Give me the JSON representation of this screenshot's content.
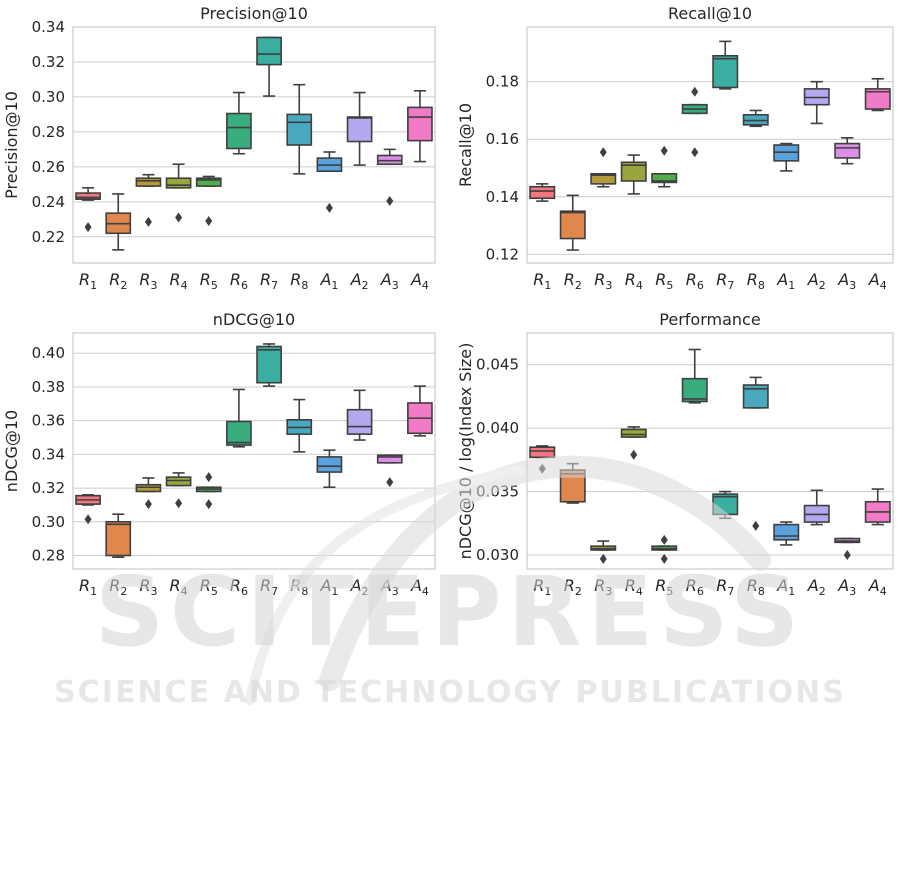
{
  "watermark": {
    "main": "SCITEPRESS",
    "sub": "SCIENCE AND TECHNOLOGY PUBLICATIONS"
  },
  "chart_data": [
    {
      "type": "box",
      "title": "Precision@10",
      "xlabel": "",
      "ylabel": "Precision@10",
      "ylim": [
        0.205,
        0.34
      ],
      "yticks": [
        0.22,
        0.24,
        0.26,
        0.28,
        0.3,
        0.32,
        0.34
      ],
      "ytick_labels": [
        "0.22",
        "0.24",
        "0.26",
        "0.28",
        "0.30",
        "0.32",
        "0.34"
      ],
      "grid": true,
      "boxes": [
        {
          "label": [
            "R",
            "1"
          ],
          "color": "#f4777f",
          "whislo": 0.241,
          "q1": 0.2415,
          "med": 0.2425,
          "q3": 0.245,
          "whishi": 0.248,
          "fliers": [
            0.2255
          ]
        },
        {
          "label": [
            "R",
            "2"
          ],
          "color": "#e0874e",
          "whislo": 0.2125,
          "q1": 0.222,
          "med": 0.2275,
          "q3": 0.2335,
          "whishi": 0.2445,
          "fliers": []
        },
        {
          "label": [
            "R",
            "3"
          ],
          "color": "#b29a3a",
          "whislo": 0.249,
          "q1": 0.249,
          "med": 0.252,
          "q3": 0.2535,
          "whishi": 0.2555,
          "fliers": [
            0.2285
          ]
        },
        {
          "label": [
            "R",
            "4"
          ],
          "color": "#9aa53d",
          "whislo": 0.248,
          "q1": 0.248,
          "med": 0.2495,
          "q3": 0.2535,
          "whishi": 0.2615,
          "fliers": [
            0.231
          ]
        },
        {
          "label": [
            "R",
            "5"
          ],
          "color": "#4fae4a",
          "whislo": 0.249,
          "q1": 0.249,
          "med": 0.2525,
          "q3": 0.2535,
          "whishi": 0.2545,
          "fliers": [
            0.229
          ]
        },
        {
          "label": [
            "R",
            "6"
          ],
          "color": "#3aad7f",
          "whislo": 0.2675,
          "q1": 0.2705,
          "med": 0.2825,
          "q3": 0.2905,
          "whishi": 0.3025,
          "fliers": []
        },
        {
          "label": [
            "R",
            "7"
          ],
          "color": "#3aaea0",
          "whislo": 0.3005,
          "q1": 0.3185,
          "med": 0.3245,
          "q3": 0.334,
          "whishi": 0.334,
          "fliers": []
        },
        {
          "label": [
            "R",
            "8"
          ],
          "color": "#48a8be",
          "whislo": 0.256,
          "q1": 0.2725,
          "med": 0.2855,
          "q3": 0.29,
          "whishi": 0.307,
          "fliers": []
        },
        {
          "label": [
            "A",
            "1"
          ],
          "color": "#5aa2de",
          "whislo": 0.2575,
          "q1": 0.2575,
          "med": 0.261,
          "q3": 0.265,
          "whishi": 0.2685,
          "fliers": [
            0.2365
          ]
        },
        {
          "label": [
            "A",
            "2"
          ],
          "color": "#b4a8ee",
          "whislo": 0.261,
          "q1": 0.2745,
          "med": 0.288,
          "q3": 0.2885,
          "whishi": 0.3025,
          "fliers": []
        },
        {
          "label": [
            "A",
            "3"
          ],
          "color": "#dc8ee8",
          "whislo": 0.2615,
          "q1": 0.2615,
          "med": 0.2635,
          "q3": 0.2665,
          "whishi": 0.27,
          "fliers": [
            0.2405
          ]
        },
        {
          "label": [
            "A",
            "4"
          ],
          "color": "#f07bc7",
          "whislo": 0.263,
          "q1": 0.275,
          "med": 0.2885,
          "q3": 0.294,
          "whishi": 0.3035,
          "fliers": []
        }
      ]
    },
    {
      "type": "box",
      "title": "Recall@10",
      "xlabel": "",
      "ylabel": "Recall@10",
      "ylim": [
        0.117,
        0.199
      ],
      "yticks": [
        0.12,
        0.14,
        0.16,
        0.18
      ],
      "ytick_labels": [
        "0.12",
        "0.14",
        "0.16",
        "0.18"
      ],
      "grid": true,
      "boxes": [
        {
          "label": [
            "R",
            "1"
          ],
          "color": "#f4777f",
          "whislo": 0.1385,
          "q1": 0.1395,
          "med": 0.142,
          "q3": 0.1435,
          "whishi": 0.1445,
          "fliers": []
        },
        {
          "label": [
            "R",
            "2"
          ],
          "color": "#e0874e",
          "whislo": 0.1215,
          "q1": 0.1255,
          "med": 0.1345,
          "q3": 0.135,
          "whishi": 0.1405,
          "fliers": []
        },
        {
          "label": [
            "R",
            "3"
          ],
          "color": "#b29a3a",
          "whislo": 0.1435,
          "q1": 0.1445,
          "med": 0.1475,
          "q3": 0.148,
          "whishi": 0.148,
          "fliers": [
            0.1555
          ]
        },
        {
          "label": [
            "R",
            "4"
          ],
          "color": "#9aa53d",
          "whislo": 0.141,
          "q1": 0.1455,
          "med": 0.151,
          "q3": 0.152,
          "whishi": 0.1545,
          "fliers": []
        },
        {
          "label": [
            "R",
            "5"
          ],
          "color": "#4fae4a",
          "whislo": 0.1435,
          "q1": 0.145,
          "med": 0.1455,
          "q3": 0.148,
          "whishi": 0.148,
          "fliers": [
            0.156
          ]
        },
        {
          "label": [
            "R",
            "6"
          ],
          "color": "#3aad7f",
          "whislo": 0.169,
          "q1": 0.169,
          "med": 0.1705,
          "q3": 0.172,
          "whishi": 0.172,
          "fliers": [
            0.1765,
            0.1555
          ]
        },
        {
          "label": [
            "R",
            "7"
          ],
          "color": "#3aaea0",
          "whislo": 0.1775,
          "q1": 0.178,
          "med": 0.188,
          "q3": 0.189,
          "whishi": 0.194,
          "fliers": []
        },
        {
          "label": [
            "R",
            "8"
          ],
          "color": "#48a8be",
          "whislo": 0.1645,
          "q1": 0.165,
          "med": 0.1665,
          "q3": 0.1685,
          "whishi": 0.17,
          "fliers": []
        },
        {
          "label": [
            "A",
            "1"
          ],
          "color": "#5aa2de",
          "whislo": 0.149,
          "q1": 0.1525,
          "med": 0.1555,
          "q3": 0.158,
          "whishi": 0.1585,
          "fliers": []
        },
        {
          "label": [
            "A",
            "2"
          ],
          "color": "#b4a8ee",
          "whislo": 0.1655,
          "q1": 0.172,
          "med": 0.1745,
          "q3": 0.1775,
          "whishi": 0.18,
          "fliers": []
        },
        {
          "label": [
            "A",
            "3"
          ],
          "color": "#dc8ee8",
          "whislo": 0.1515,
          "q1": 0.1535,
          "med": 0.157,
          "q3": 0.1585,
          "whishi": 0.1605,
          "fliers": []
        },
        {
          "label": [
            "A",
            "4"
          ],
          "color": "#f07bc7",
          "whislo": 0.17,
          "q1": 0.1705,
          "med": 0.1765,
          "q3": 0.1775,
          "whishi": 0.181,
          "fliers": []
        }
      ]
    },
    {
      "type": "box",
      "title": "nDCG@10",
      "xlabel": "",
      "ylabel": "nDCG@10",
      "ylim": [
        0.272,
        0.412
      ],
      "yticks": [
        0.28,
        0.3,
        0.32,
        0.34,
        0.36,
        0.38,
        0.4
      ],
      "ytick_labels": [
        "0.28",
        "0.30",
        "0.32",
        "0.34",
        "0.36",
        "0.38",
        "0.40"
      ],
      "grid": true,
      "boxes": [
        {
          "label": [
            "R",
            "1"
          ],
          "color": "#f4777f",
          "whislo": 0.31,
          "q1": 0.3105,
          "med": 0.313,
          "q3": 0.3155,
          "whishi": 0.316,
          "fliers": [
            0.3015
          ]
        },
        {
          "label": [
            "R",
            "2"
          ],
          "color": "#e0874e",
          "whislo": 0.279,
          "q1": 0.28,
          "med": 0.2985,
          "q3": 0.3,
          "whishi": 0.3045,
          "fliers": []
        },
        {
          "label": [
            "R",
            "3"
          ],
          "color": "#b29a3a",
          "whislo": 0.318,
          "q1": 0.318,
          "med": 0.3205,
          "q3": 0.322,
          "whishi": 0.326,
          "fliers": [
            0.3105
          ]
        },
        {
          "label": [
            "R",
            "4"
          ],
          "color": "#9aa53d",
          "whislo": 0.3215,
          "q1": 0.3215,
          "med": 0.3245,
          "q3": 0.3265,
          "whishi": 0.329,
          "fliers": [
            0.311
          ]
        },
        {
          "label": [
            "R",
            "5"
          ],
          "color": "#4fae4a",
          "whislo": 0.318,
          "q1": 0.318,
          "med": 0.3195,
          "q3": 0.3205,
          "whishi": 0.3205,
          "fliers": [
            0.3105,
            0.3265
          ]
        },
        {
          "label": [
            "R",
            "6"
          ],
          "color": "#3aad7f",
          "whislo": 0.3445,
          "q1": 0.3455,
          "med": 0.347,
          "q3": 0.3595,
          "whishi": 0.3785,
          "fliers": []
        },
        {
          "label": [
            "R",
            "7"
          ],
          "color": "#3aaea0",
          "whislo": 0.3805,
          "q1": 0.3825,
          "med": 0.402,
          "q3": 0.404,
          "whishi": 0.4055,
          "fliers": []
        },
        {
          "label": [
            "R",
            "8"
          ],
          "color": "#48a8be",
          "whislo": 0.3415,
          "q1": 0.352,
          "med": 0.356,
          "q3": 0.3605,
          "whishi": 0.3725,
          "fliers": []
        },
        {
          "label": [
            "A",
            "1"
          ],
          "color": "#5aa2de",
          "whislo": 0.3205,
          "q1": 0.3295,
          "med": 0.333,
          "q3": 0.3385,
          "whishi": 0.3425,
          "fliers": []
        },
        {
          "label": [
            "A",
            "2"
          ],
          "color": "#b4a8ee",
          "whislo": 0.3485,
          "q1": 0.352,
          "med": 0.3565,
          "q3": 0.3665,
          "whishi": 0.378,
          "fliers": []
        },
        {
          "label": [
            "A",
            "3"
          ],
          "color": "#dc8ee8",
          "whislo": 0.335,
          "q1": 0.335,
          "med": 0.3385,
          "q3": 0.3395,
          "whishi": 0.3395,
          "fliers": [
            0.3235
          ]
        },
        {
          "label": [
            "A",
            "4"
          ],
          "color": "#f07bc7",
          "whislo": 0.351,
          "q1": 0.3525,
          "med": 0.3615,
          "q3": 0.3705,
          "whishi": 0.3805,
          "fliers": []
        }
      ]
    },
    {
      "type": "box",
      "title": "Performance",
      "xlabel": "",
      "ylabel": "nDCG@10 / log(Index Size)",
      "ylim": [
        0.0289,
        0.0475
      ],
      "yticks": [
        0.03,
        0.035,
        0.04,
        0.045
      ],
      "ytick_labels": [
        "0.030",
        "0.035",
        "0.040",
        "0.045"
      ],
      "grid": true,
      "boxes": [
        {
          "label": [
            "R",
            "1"
          ],
          "color": "#f4777f",
          "whislo": 0.0377,
          "q1": 0.0377,
          "med": 0.0382,
          "q3": 0.0385,
          "whishi": 0.0386,
          "fliers": [
            0.0368
          ]
        },
        {
          "label": [
            "R",
            "2"
          ],
          "color": "#e0874e",
          "whislo": 0.0341,
          "q1": 0.0342,
          "med": 0.0364,
          "q3": 0.0367,
          "whishi": 0.0372,
          "fliers": []
        },
        {
          "label": [
            "R",
            "3"
          ],
          "color": "#b29a3a",
          "whislo": 0.0304,
          "q1": 0.0304,
          "med": 0.0305,
          "q3": 0.0307,
          "whishi": 0.0311,
          "fliers": [
            0.0297
          ]
        },
        {
          "label": [
            "R",
            "4"
          ],
          "color": "#9aa53d",
          "whislo": 0.0393,
          "q1": 0.0393,
          "med": 0.0395,
          "q3": 0.0399,
          "whishi": 0.0401,
          "fliers": [
            0.0379
          ]
        },
        {
          "label": [
            "R",
            "5"
          ],
          "color": "#4fae4a",
          "whislo": 0.0304,
          "q1": 0.0304,
          "med": 0.0305,
          "q3": 0.0307,
          "whishi": 0.0307,
          "fliers": [
            0.0312,
            0.0297
          ]
        },
        {
          "label": [
            "R",
            "6"
          ],
          "color": "#3aad7f",
          "whislo": 0.042,
          "q1": 0.0421,
          "med": 0.0423,
          "q3": 0.0439,
          "whishi": 0.0462,
          "fliers": []
        },
        {
          "label": [
            "R",
            "7"
          ],
          "color": "#3aaea0",
          "whislo": 0.0329,
          "q1": 0.0332,
          "med": 0.0346,
          "q3": 0.0348,
          "whishi": 0.035,
          "fliers": []
        },
        {
          "label": [
            "R",
            "8"
          ],
          "color": "#48a8be",
          "whislo": 0.0416,
          "q1": 0.0416,
          "med": 0.0431,
          "q3": 0.0434,
          "whishi": 0.044,
          "fliers": [
            0.0323
          ]
        },
        {
          "label": [
            "A",
            "1"
          ],
          "color": "#5aa2de",
          "whislo": 0.0308,
          "q1": 0.0312,
          "med": 0.0315,
          "q3": 0.0324,
          "whishi": 0.0326,
          "fliers": []
        },
        {
          "label": [
            "A",
            "2"
          ],
          "color": "#b4a8ee",
          "whislo": 0.0324,
          "q1": 0.0326,
          "med": 0.0332,
          "q3": 0.0339,
          "whishi": 0.0351,
          "fliers": []
        },
        {
          "label": [
            "A",
            "3"
          ],
          "color": "#dc8ee8",
          "whislo": 0.031,
          "q1": 0.031,
          "med": 0.0311,
          "q3": 0.0313,
          "whishi": 0.0313,
          "fliers": [
            0.03
          ]
        },
        {
          "label": [
            "A",
            "4"
          ],
          "color": "#f07bc7",
          "whislo": 0.0324,
          "q1": 0.0326,
          "med": 0.0334,
          "q3": 0.0342,
          "whishi": 0.0352,
          "fliers": []
        }
      ]
    }
  ]
}
